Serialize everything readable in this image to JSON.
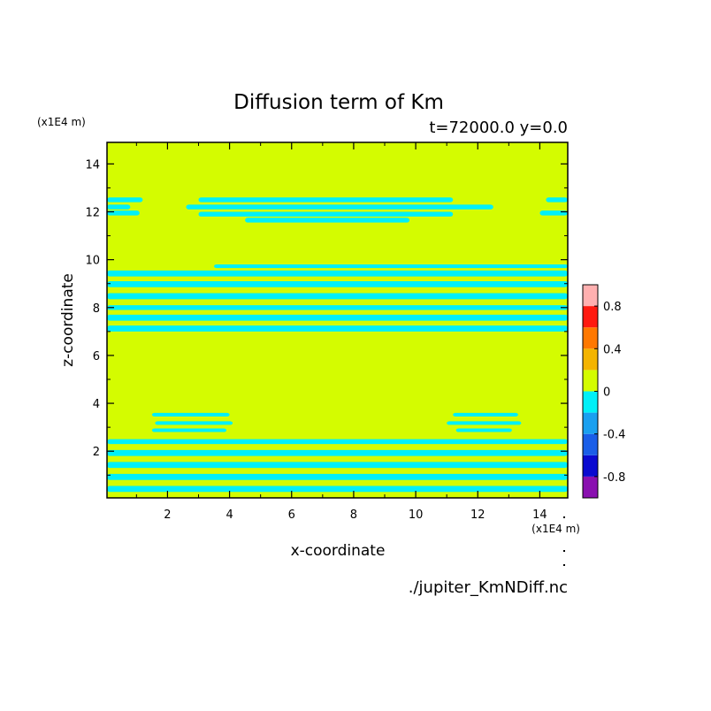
{
  "chart_data": {
    "type": "heatmap",
    "title": "Diffusion term of Km",
    "subtitle": "t=72000.0 y=0.0",
    "xlabel": "x-coordinate",
    "ylabel": "z-coordinate",
    "x_unit": "(x1E4 m)",
    "y_unit": "(x1E4 m)",
    "source_file": "./jupiter_KmNDiff.nc",
    "xlim": [
      0.05,
      14.9
    ],
    "ylim": [
      0.05,
      14.9
    ],
    "x_ticks": [
      2,
      4,
      6,
      8,
      10,
      12,
      14
    ],
    "y_ticks": [
      2,
      4,
      6,
      8,
      10,
      12,
      14
    ],
    "colorbar": {
      "levels": [
        -1.0,
        -0.8,
        -0.6,
        -0.4,
        -0.2,
        0,
        0.2,
        0.4,
        0.6,
        0.8,
        1.0
      ],
      "colors": [
        "#8a10b0",
        "#0a0ad0",
        "#1a5ee8",
        "#1aa0f0",
        "#00f0f8",
        "#d4fc00",
        "#f4b400",
        "#ff7800",
        "#ff1a10",
        "#ffb0b0"
      ],
      "tick_labels": [
        "-0.8",
        "-0.4",
        "0",
        "0.4",
        "0.8"
      ],
      "tick_values": [
        -0.8,
        -0.4,
        0,
        0.4,
        0.8
      ]
    },
    "background_value": 0.05,
    "background_color": "#d4fc00",
    "pattern_color": "#00f0f8",
    "cyan_regions": [
      {
        "band": "upper",
        "x": [
          0.05,
          1.2
        ],
        "z": [
          12.4,
          12.6
        ]
      },
      {
        "band": "upper",
        "x": [
          0.05,
          0.8
        ],
        "z": [
          12.1,
          12.3
        ]
      },
      {
        "band": "upper",
        "x": [
          0.05,
          1.1
        ],
        "z": [
          11.85,
          12.05
        ]
      },
      {
        "band": "upper",
        "x": [
          3.0,
          11.2
        ],
        "z": [
          12.4,
          12.6
        ]
      },
      {
        "band": "upper",
        "x": [
          2.6,
          12.5
        ],
        "z": [
          12.1,
          12.3
        ]
      },
      {
        "band": "upper",
        "x": [
          3.0,
          11.2
        ],
        "z": [
          11.8,
          12.0
        ]
      },
      {
        "band": "upper",
        "x": [
          4.5,
          9.8
        ],
        "z": [
          11.55,
          11.75
        ]
      },
      {
        "band": "upper",
        "x": [
          14.2,
          14.9
        ],
        "z": [
          12.4,
          12.6
        ]
      },
      {
        "band": "upper",
        "x": [
          14.0,
          14.9
        ],
        "z": [
          11.85,
          12.05
        ]
      },
      {
        "band": "middle",
        "x": [
          3.5,
          14.9
        ],
        "z": [
          9.65,
          9.8
        ]
      },
      {
        "band": "middle",
        "x": [
          0.05,
          14.9
        ],
        "z": [
          9.3,
          9.55
        ]
      },
      {
        "band": "middle",
        "x": [
          0.05,
          14.9
        ],
        "z": [
          8.85,
          9.1
        ]
      },
      {
        "band": "middle",
        "x": [
          0.05,
          14.9
        ],
        "z": [
          8.35,
          8.6
        ]
      },
      {
        "band": "middle",
        "x": [
          0.05,
          14.9
        ],
        "z": [
          7.9,
          8.1
        ]
      },
      {
        "band": "middle",
        "x": [
          0.05,
          14.9
        ],
        "z": [
          7.45,
          7.7
        ]
      },
      {
        "band": "middle",
        "x": [
          0.05,
          14.9
        ],
        "z": [
          7.0,
          7.25
        ]
      },
      {
        "band": "lower",
        "x": [
          1.5,
          4.0
        ],
        "z": [
          3.45,
          3.6
        ]
      },
      {
        "band": "lower",
        "x": [
          1.6,
          4.1
        ],
        "z": [
          3.1,
          3.25
        ]
      },
      {
        "band": "lower",
        "x": [
          1.5,
          3.9
        ],
        "z": [
          2.8,
          2.95
        ]
      },
      {
        "band": "lower",
        "x": [
          11.2,
          13.3
        ],
        "z": [
          3.45,
          3.6
        ]
      },
      {
        "band": "lower",
        "x": [
          11.0,
          13.4
        ],
        "z": [
          3.1,
          3.25
        ]
      },
      {
        "band": "lower",
        "x": [
          11.3,
          13.1
        ],
        "z": [
          2.8,
          2.95
        ]
      },
      {
        "band": "lower",
        "x": [
          0.05,
          14.9
        ],
        "z": [
          2.3,
          2.5
        ]
      },
      {
        "band": "lower",
        "x": [
          0.05,
          14.9
        ],
        "z": [
          1.8,
          2.05
        ]
      },
      {
        "band": "lower",
        "x": [
          0.05,
          14.9
        ],
        "z": [
          1.3,
          1.55
        ]
      },
      {
        "band": "lower",
        "x": [
          0.05,
          14.9
        ],
        "z": [
          0.8,
          1.05
        ]
      },
      {
        "band": "lower",
        "x": [
          0.05,
          14.9
        ],
        "z": [
          0.3,
          0.55
        ]
      }
    ]
  }
}
